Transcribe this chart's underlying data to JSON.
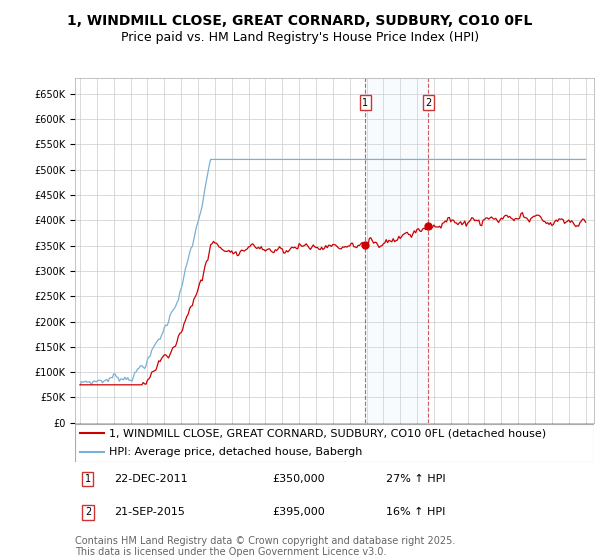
{
  "title": "1, WINDMILL CLOSE, GREAT CORNARD, SUDBURY, CO10 0FL",
  "subtitle": "Price paid vs. HM Land Registry's House Price Index (HPI)",
  "ylim": [
    0,
    680000
  ],
  "yticks": [
    0,
    50000,
    100000,
    150000,
    200000,
    250000,
    300000,
    350000,
    400000,
    450000,
    500000,
    550000,
    600000,
    650000
  ],
  "background_color": "#ffffff",
  "grid_color": "#cccccc",
  "sale1_price": 350000,
  "sale2_price": 395000,
  "line1_color": "#cc0000",
  "line2_color": "#7ab0d4",
  "legend_line1": "1, WINDMILL CLOSE, GREAT CORNARD, SUDBURY, CO10 0FL (detached house)",
  "legend_line2": "HPI: Average price, detached house, Babergh",
  "annotation1": [
    "1",
    "22-DEC-2011",
    "£350,000",
    "27% ↑ HPI"
  ],
  "annotation2": [
    "2",
    "21-SEP-2015",
    "£395,000",
    "16% ↑ HPI"
  ],
  "footer": "Contains HM Land Registry data © Crown copyright and database right 2025.\nThis data is licensed under the Open Government Licence v3.0.",
  "title_fontsize": 10,
  "subtitle_fontsize": 9,
  "tick_fontsize": 7,
  "legend_fontsize": 8,
  "annotation_fontsize": 8,
  "footer_fontsize": 7
}
